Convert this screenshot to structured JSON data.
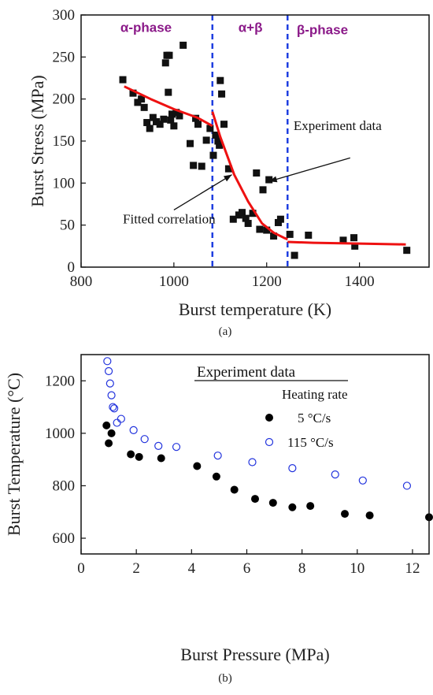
{
  "chart_data": [
    {
      "type": "scatter",
      "panel_label": "(a)",
      "xlabel": "Burst temperature (K)",
      "ylabel": "Burst Stress (MPa)",
      "xlim": [
        800,
        1550
      ],
      "ylim": [
        0,
        300
      ],
      "xticks": [
        800,
        1000,
        1200,
        1400
      ],
      "yticks": [
        0,
        50,
        100,
        150,
        200,
        250,
        300
      ],
      "grid": false,
      "phase_boundaries": [
        1083,
        1245
      ],
      "phase_labels": [
        {
          "text": "α-phase",
          "x": 940,
          "y": 280
        },
        {
          "text": "α+β",
          "x": 1165,
          "y": 280
        },
        {
          "text": "β-phase",
          "x": 1320,
          "y": 277
        }
      ],
      "annotations": [
        {
          "text": "Experiment data",
          "tx": 1258,
          "ty": 163,
          "ax": 1380,
          "ay": 130,
          "hx": 1205,
          "hy": 102
        },
        {
          "text": "Fitted correlation",
          "tx": 890,
          "ty": 52,
          "ax": 1000,
          "ay": 68,
          "hx": 1125,
          "hy": 110
        }
      ],
      "series": [
        {
          "kind": "points",
          "color": "#111111",
          "x": [
            890,
            912,
            922,
            930,
            936,
            942,
            948,
            955,
            962,
            970,
            978,
            982,
            985,
            988,
            990,
            993,
            996,
            1000,
            1005,
            1012,
            1020,
            1035,
            1042,
            1047,
            1052,
            1060,
            1070,
            1078,
            1085,
            1090,
            1095,
            1098,
            1100,
            1103,
            1108,
            1118,
            1128,
            1140,
            1147,
            1155,
            1160,
            1170,
            1178,
            1185,
            1192,
            1200,
            1205,
            1215,
            1225,
            1230,
            1250,
            1260,
            1290,
            1365,
            1388,
            1390,
            1502
          ],
          "y": [
            223,
            207,
            196,
            200,
            190,
            172,
            165,
            178,
            173,
            170,
            176,
            243,
            252,
            208,
            252,
            175,
            182,
            168,
            184,
            180,
            264,
            147,
            121,
            177,
            170,
            120,
            151,
            165,
            133,
            157,
            150,
            145,
            222,
            206,
            170,
            117,
            57,
            62,
            65,
            58,
            52,
            64,
            112,
            45,
            92,
            44,
            104,
            37,
            53,
            57,
            39,
            14,
            38,
            32,
            35,
            25,
            20
          ]
        },
        {
          "kind": "line",
          "color": "#ee1111",
          "x": [
            893,
            950,
            1000,
            1050,
            1083,
            1083,
            1100,
            1130,
            1160,
            1190,
            1215,
            1237,
            1245,
            1245,
            1300,
            1400,
            1500
          ],
          "y": [
            215,
            200,
            188,
            178,
            168,
            185,
            155,
            110,
            78,
            52,
            41,
            35,
            33,
            30,
            29,
            28,
            27
          ]
        }
      ]
    },
    {
      "type": "scatter",
      "panel_label": "(b)",
      "xlabel": "Burst Pressure (MPa)",
      "ylabel": "Burst Temperature (°C)",
      "xlim": [
        0,
        12.6
      ],
      "ylim": [
        540,
        1300
      ],
      "xticks": [
        0,
        2,
        4,
        6,
        8,
        10,
        12
      ],
      "yticks": [
        600,
        800,
        1000,
        1200
      ],
      "grid": false,
      "legend": {
        "title": "Experiment data",
        "subtitle": "Heating rate",
        "placement": "top-right"
      },
      "series": [
        {
          "name": "5 °C/s",
          "marker": "filled-circle",
          "color": "#000000",
          "x": [
            0.92,
            1.0,
            1.1,
            1.8,
            2.1,
            2.9,
            4.2,
            4.9,
            5.55,
            6.3,
            6.95,
            7.65,
            8.3,
            9.55,
            10.45,
            12.6
          ],
          "y": [
            1030,
            962,
            1000,
            920,
            910,
            905,
            875,
            835,
            785,
            750,
            735,
            718,
            723,
            693,
            687,
            680
          ]
        },
        {
          "name": "115 °C/s",
          "marker": "open-circle",
          "color": "#2233dd",
          "x": [
            0.95,
            1.0,
            1.05,
            1.1,
            1.15,
            1.2,
            1.3,
            1.45,
            1.9,
            2.3,
            2.8,
            3.45,
            4.95,
            6.2,
            7.65,
            9.2,
            10.2,
            11.8
          ],
          "y": [
            1275,
            1237,
            1190,
            1145,
            1100,
            1095,
            1040,
            1055,
            1012,
            978,
            952,
            948,
            915,
            890,
            867,
            843,
            820,
            800
          ]
        }
      ]
    }
  ]
}
